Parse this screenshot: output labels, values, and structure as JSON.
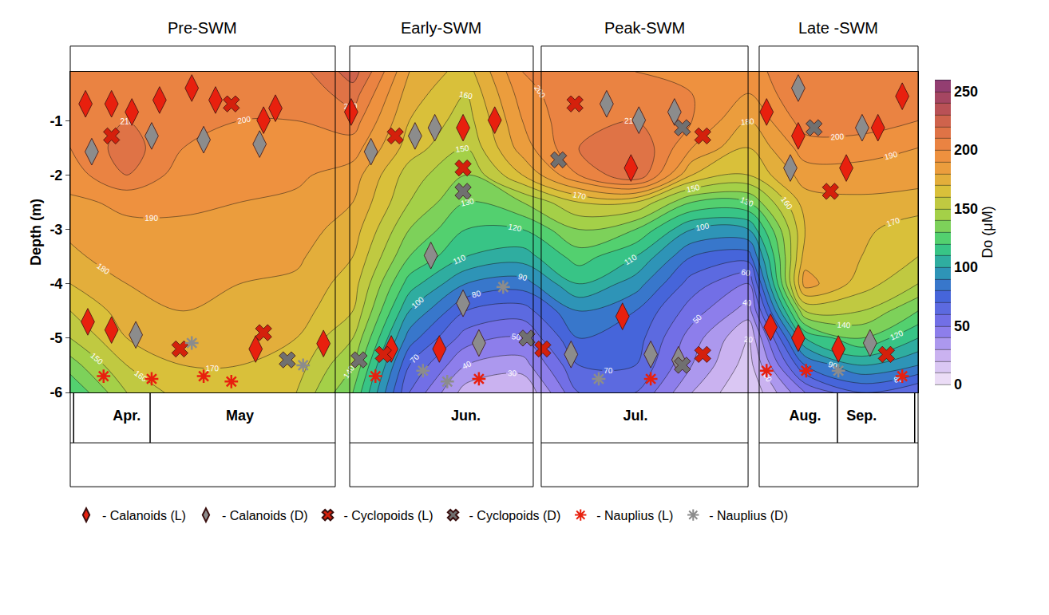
{
  "chart_data": {
    "type": "contour",
    "panel_titles": [
      "Pre-SWM",
      "Early-SWM",
      "Peak-SWM",
      "Late -SWM"
    ],
    "ylabel": "Depth (m)",
    "colorbar_label": "Do (μM)",
    "categories": [
      null,
      "Apr.",
      null,
      "May",
      null,
      null,
      null,
      "Jun.",
      null,
      null,
      "Jul.",
      null,
      null,
      "Aug.",
      "Sep.",
      null
    ],
    "y": [
      -6,
      -5.5,
      -5,
      -4.5,
      -4,
      -3.5,
      -3,
      -2.5,
      -2,
      -1.5,
      -1,
      -0.5,
      -0.1
    ],
    "z": [
      [
        120,
        150,
        165,
        165,
        160,
        130,
        60,
        25,
        20,
        60,
        60,
        30,
        10,
        50,
        70,
        60
      ],
      [
        135,
        160,
        170,
        170,
        165,
        140,
        70,
        40,
        35,
        70,
        70,
        40,
        15,
        80,
        100,
        90
      ],
      [
        150,
        170,
        175,
        175,
        170,
        150,
        85,
        55,
        50,
        80,
        75,
        45,
        20,
        110,
        130,
        110
      ],
      [
        160,
        175,
        180,
        178,
        175,
        160,
        100,
        70,
        65,
        90,
        80,
        55,
        35,
        150,
        150,
        130
      ],
      [
        170,
        180,
        182,
        180,
        178,
        165,
        115,
        90,
        85,
        110,
        95,
        65,
        50,
        185,
        165,
        150
      ],
      [
        178,
        185,
        185,
        183,
        182,
        170,
        130,
        110,
        105,
        125,
        110,
        80,
        75,
        175,
        170,
        160
      ],
      [
        182,
        188,
        188,
        186,
        185,
        175,
        140,
        120,
        120,
        140,
        130,
        100,
        100,
        170,
        172,
        165
      ],
      [
        188,
        192,
        192,
        190,
        188,
        180,
        150,
        130,
        140,
        160,
        160,
        130,
        130,
        175,
        178,
        175
      ],
      [
        195,
        210,
        195,
        192,
        192,
        185,
        155,
        140,
        170,
        200,
        220,
        170,
        160,
        185,
        185,
        185
      ],
      [
        200,
        215,
        200,
        196,
        196,
        195,
        165,
        150,
        185,
        210,
        220,
        190,
        170,
        195,
        195,
        190
      ],
      [
        205,
        210,
        205,
        200,
        200,
        205,
        170,
        155,
        190,
        210,
        210,
        200,
        180,
        205,
        205,
        200
      ],
      [
        210,
        208,
        205,
        202,
        202,
        215,
        175,
        160,
        195,
        210,
        205,
        200,
        190,
        210,
        210,
        205
      ],
      [
        210,
        205,
        205,
        205,
        205,
        225,
        180,
        165,
        200,
        205,
        200,
        200,
        195,
        210,
        210,
        205
      ]
    ],
    "zlim": [
      0,
      260
    ],
    "zticks": [
      0,
      50,
      100,
      150,
      200,
      250
    ],
    "contour_levels": {
      "start": 0,
      "end": 260,
      "size": 10
    },
    "ylim": [
      -6,
      -0.1
    ],
    "yticks": [
      -1,
      -2,
      -3,
      -4,
      -5,
      -6
    ],
    "legend": "bottom",
    "series": [
      {
        "name": "- Calanoids (L)",
        "color": "#e8200e",
        "marker": "diamond-tall",
        "x": [
          0.27,
          0.73,
          1.09,
          1.58,
          2.15,
          2.57,
          3.42,
          3.63,
          4.97,
          6.95,
          7.51,
          9.92,
          12.32,
          12.88,
          13.73,
          14.29,
          14.72,
          0.31,
          0.73,
          3.28,
          4.48,
          5.68,
          6.53,
          9.77,
          12.39,
          12.88,
          13.59
        ],
        "y": [
          -0.69,
          -0.69,
          -0.84,
          -0.62,
          -0.4,
          -0.62,
          -0.99,
          -0.77,
          -0.84,
          -1.13,
          -0.99,
          -1.87,
          -0.84,
          -1.28,
          -1.87,
          -1.13,
          -0.55,
          -4.7,
          -4.85,
          -5.2,
          -5.1,
          -5.2,
          -5.2,
          -4.6,
          -4.8,
          -5.0,
          -5.2
        ]
      },
      {
        "name": "- Calanoids (D)",
        "color": "#8c8c8c",
        "marker": "diamond-tall",
        "x": [
          0.38,
          1.44,
          2.36,
          3.35,
          5.32,
          6.1,
          6.45,
          9.49,
          10.06,
          10.69,
          12.88,
          12.74,
          14.01,
          1.16,
          6.38,
          6.95,
          7.23,
          8.86,
          10.27,
          10.76,
          14.15
        ],
        "y": [
          -1.57,
          -1.28,
          -1.35,
          -1.43,
          -1.57,
          -1.28,
          -1.13,
          -0.69,
          -0.99,
          -0.84,
          -0.4,
          -1.87,
          -1.13,
          -4.94,
          -3.48,
          -4.36,
          -5.09,
          -5.3,
          -5.3,
          -5.4,
          -5.09
        ]
      },
      {
        "name": "- Cyclopoids (L)",
        "color": "#d4200c",
        "marker": "x",
        "x": [
          0.73,
          2.85,
          5.75,
          6.95,
          8.93,
          11.19,
          13.45,
          1.94,
          3.42,
          5.54,
          8.36,
          11.19,
          14.44
        ],
        "y": [
          -1.28,
          -0.69,
          -1.28,
          -1.87,
          -0.69,
          -1.28,
          -2.3,
          -5.2,
          -4.9,
          -5.3,
          -5.2,
          -5.3,
          -5.3
        ]
      },
      {
        "name": "- Cyclopoids (D)",
        "color": "#707070",
        "marker": "x",
        "x": [
          6.95,
          8.64,
          10.83,
          13.16,
          5.11,
          8.08,
          10.83,
          3.84
        ],
        "y": [
          -2.3,
          -1.72,
          -1.13,
          -1.13,
          -5.4,
          -5.0,
          -5.5,
          -5.4
        ]
      },
      {
        "name": "- Nauplius (L)",
        "color": "#e8200e",
        "marker": "asterisk-open",
        "x": [
          0.59,
          1.44,
          2.36,
          2.85,
          5.4,
          7.23,
          10.27,
          12.32,
          13.02,
          14.72
        ],
        "y": [
          -5.7,
          -5.75,
          -5.7,
          -5.8,
          -5.7,
          -5.75,
          -5.75,
          -5.6,
          -5.6,
          -5.7
        ]
      },
      {
        "name": "- Nauplius (D)",
        "color": "#8c8c8c",
        "marker": "asterisk-open",
        "x": [
          2.15,
          4.12,
          6.24,
          7.66,
          9.35,
          13.59,
          6.67
        ],
        "y": [
          -5.09,
          -5.5,
          -5.6,
          -4.06,
          -5.75,
          -5.6,
          -5.8
        ]
      }
    ]
  }
}
